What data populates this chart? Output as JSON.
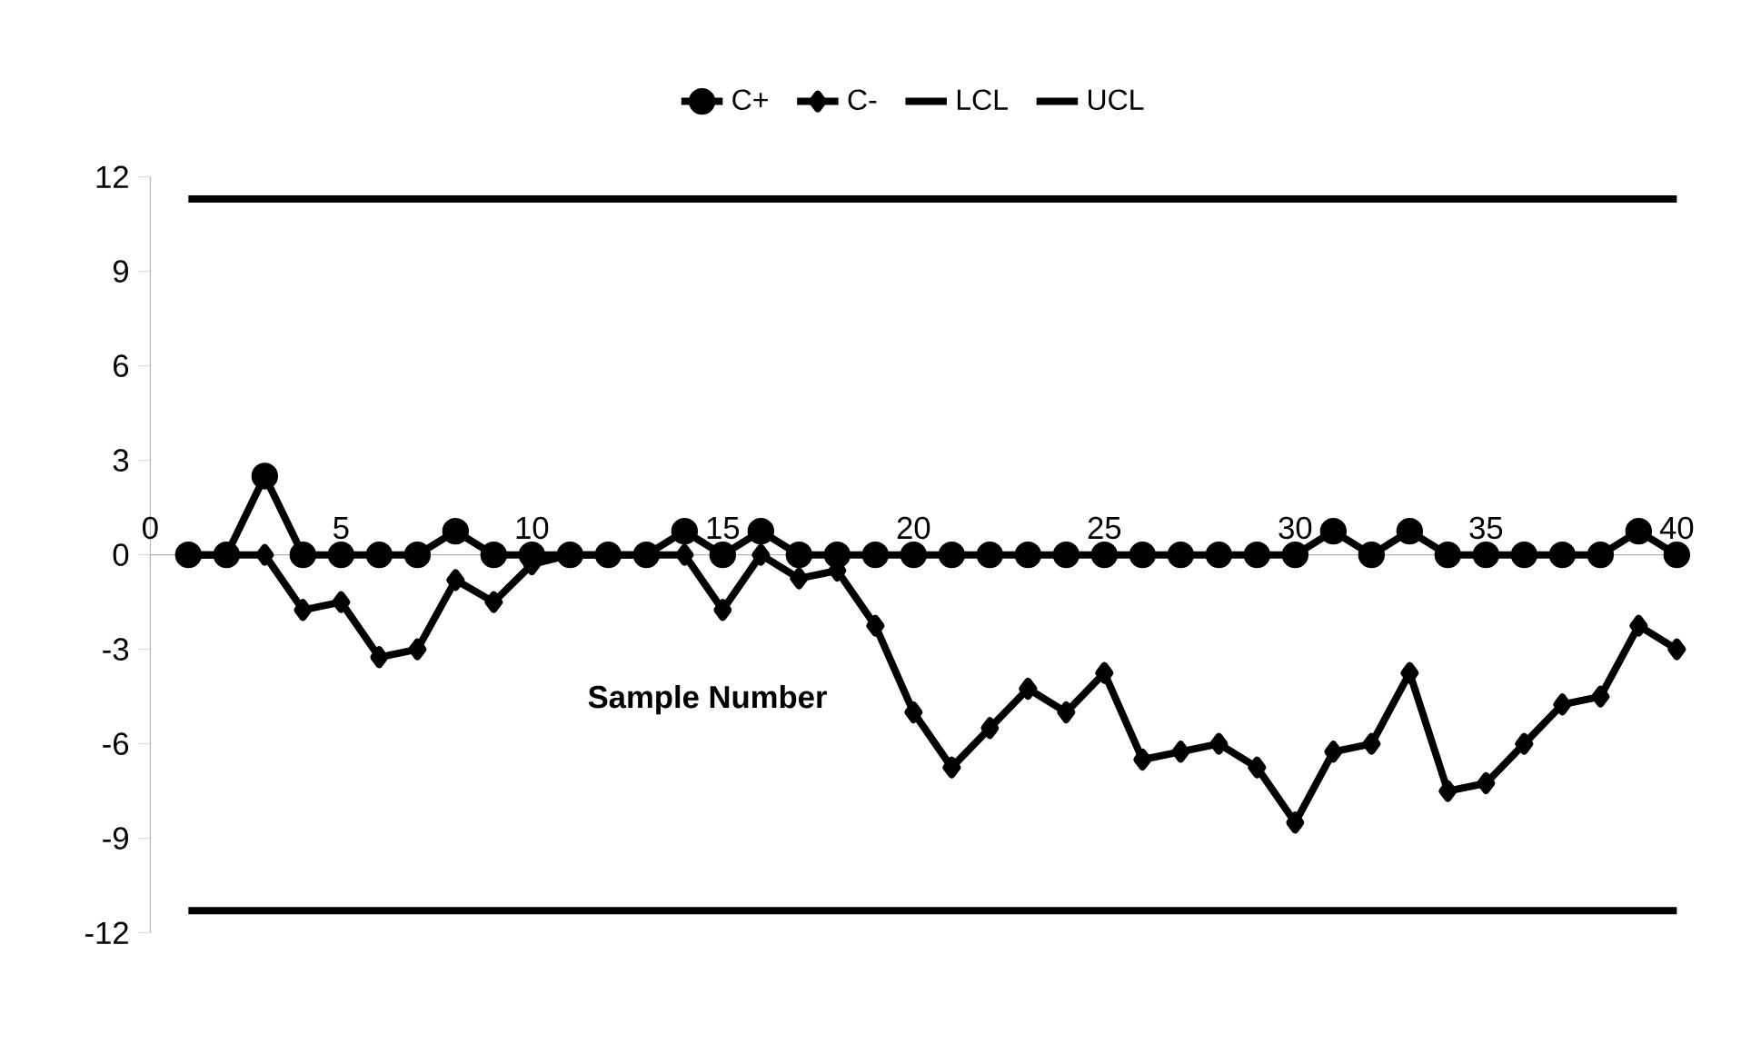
{
  "chart_data": {
    "type": "line",
    "xlabel": "Sample Number",
    "x": [
      1,
      2,
      3,
      4,
      5,
      6,
      7,
      8,
      9,
      10,
      11,
      12,
      13,
      14,
      15,
      16,
      17,
      18,
      19,
      20,
      21,
      22,
      23,
      24,
      25,
      26,
      27,
      28,
      29,
      30,
      31,
      32,
      33,
      34,
      35,
      36,
      37,
      38,
      39,
      40
    ],
    "series": [
      {
        "name": "C+",
        "color": "#000000",
        "marker": "circle",
        "values": [
          0,
          0,
          2.5,
          0,
          0,
          0,
          0,
          0.75,
          0,
          0,
          0,
          0,
          0,
          0.75,
          0,
          0.75,
          0,
          0,
          0,
          0,
          0,
          0,
          0,
          0,
          0,
          0,
          0,
          0,
          0,
          0,
          0.75,
          0,
          0.75,
          0,
          0,
          0,
          0,
          0,
          0.75,
          0
        ]
      },
      {
        "name": "C-",
        "color": "#000000",
        "marker": "diamond",
        "values": [
          0,
          0,
          0,
          -1.75,
          -1.5,
          -3.25,
          -3,
          -0.8,
          -1.5,
          -0.3,
          0,
          0,
          0,
          0,
          -1.75,
          0,
          -0.75,
          -0.5,
          -2.25,
          -5,
          -6.75,
          -5.5,
          -4.25,
          -5,
          -3.75,
          -6.5,
          -6.25,
          -6,
          -6.75,
          -8.5,
          -6.25,
          -6,
          -3.75,
          -7.5,
          -7.25,
          -6,
          -4.75,
          -4.5,
          -2.25,
          -3
        ]
      },
      {
        "name": "LCL",
        "color": "#000000",
        "marker": "none",
        "values": [
          -11.3,
          -11.3,
          -11.3,
          -11.3,
          -11.3,
          -11.3,
          -11.3,
          -11.3,
          -11.3,
          -11.3,
          -11.3,
          -11.3,
          -11.3,
          -11.3,
          -11.3,
          -11.3,
          -11.3,
          -11.3,
          -11.3,
          -11.3,
          -11.3,
          -11.3,
          -11.3,
          -11.3,
          -11.3,
          -11.3,
          -11.3,
          -11.3,
          -11.3,
          -11.3,
          -11.3,
          -11.3,
          -11.3,
          -11.3,
          -11.3,
          -11.3,
          -11.3,
          -11.3,
          -11.3,
          -11.3
        ]
      },
      {
        "name": "UCL",
        "color": "#000000",
        "marker": "none",
        "values": [
          11.3,
          11.3,
          11.3,
          11.3,
          11.3,
          11.3,
          11.3,
          11.3,
          11.3,
          11.3,
          11.3,
          11.3,
          11.3,
          11.3,
          11.3,
          11.3,
          11.3,
          11.3,
          11.3,
          11.3,
          11.3,
          11.3,
          11.3,
          11.3,
          11.3,
          11.3,
          11.3,
          11.3,
          11.3,
          11.3,
          11.3,
          11.3,
          11.3,
          11.3,
          11.3,
          11.3,
          11.3,
          11.3,
          11.3,
          11.3
        ]
      }
    ],
    "xlim": [
      0,
      40
    ],
    "xticks": [
      0,
      5,
      10,
      15,
      20,
      25,
      30,
      35,
      40
    ],
    "ylim": [
      -12,
      12
    ],
    "yticks": [
      -12,
      -9,
      -6,
      -3,
      0,
      3,
      6,
      9,
      12
    ],
    "grid": false,
    "legend": "top"
  }
}
